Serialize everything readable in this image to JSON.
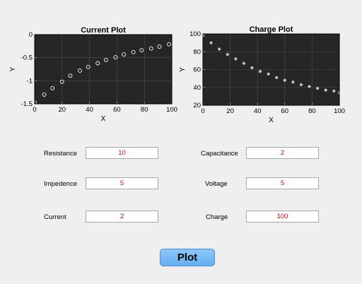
{
  "chart_data": [
    {
      "type": "scatter",
      "title": "Current Plot",
      "xlabel": "X",
      "ylabel": "Y",
      "xlim": [
        0,
        100
      ],
      "ylim": [
        -1.5,
        0
      ],
      "xticks": [
        "0",
        "20",
        "40",
        "60",
        "80",
        "100"
      ],
      "yticks": [
        "0",
        "-0.5",
        "-1",
        "-1.5"
      ],
      "grid": true,
      "marker": "circle",
      "x": [
        0,
        7,
        13,
        20,
        26,
        33,
        39,
        46,
        52,
        59,
        65,
        72,
        78,
        85,
        91,
        98
      ],
      "y": [
        -1.47,
        -1.3,
        -1.16,
        -1.02,
        -0.89,
        -0.78,
        -0.7,
        -0.62,
        -0.55,
        -0.49,
        -0.43,
        -0.38,
        -0.34,
        -0.3,
        -0.26,
        -0.21
      ]
    },
    {
      "type": "scatter",
      "title": "Charge Plot",
      "xlabel": "X",
      "ylabel": "Y",
      "xlim": [
        0,
        100
      ],
      "ylim": [
        20,
        100
      ],
      "xticks": [
        "0",
        "20",
        "40",
        "60",
        "80",
        "100"
      ],
      "yticks": [
        "100",
        "80",
        "60",
        "40",
        "20"
      ],
      "grid": true,
      "marker": "asterisk",
      "x": [
        0,
        6,
        12,
        18,
        24,
        30,
        36,
        42,
        48,
        54,
        60,
        66,
        72,
        78,
        84,
        90,
        96,
        100
      ],
      "y": [
        98,
        90,
        83,
        77,
        72,
        67,
        62,
        58,
        55,
        51,
        48,
        46,
        43,
        41,
        39,
        37,
        36,
        34
      ]
    }
  ],
  "fields": {
    "resistance": {
      "label": "Resistance",
      "value": "10"
    },
    "capacitance": {
      "label": "Capacitance",
      "value": "2"
    },
    "impedence": {
      "label": "Impedence",
      "value": "5"
    },
    "voltage": {
      "label": "Voltage",
      "value": "5"
    },
    "current": {
      "label": "Current",
      "value": "2"
    },
    "charge": {
      "label": "Charge",
      "value": "100"
    }
  },
  "plot_button": {
    "label": "Plot"
  },
  "colors": {
    "axes_bg": "#262626",
    "marker": "#ffffff",
    "value_text": "#c01212",
    "button": "#6db3f2"
  }
}
